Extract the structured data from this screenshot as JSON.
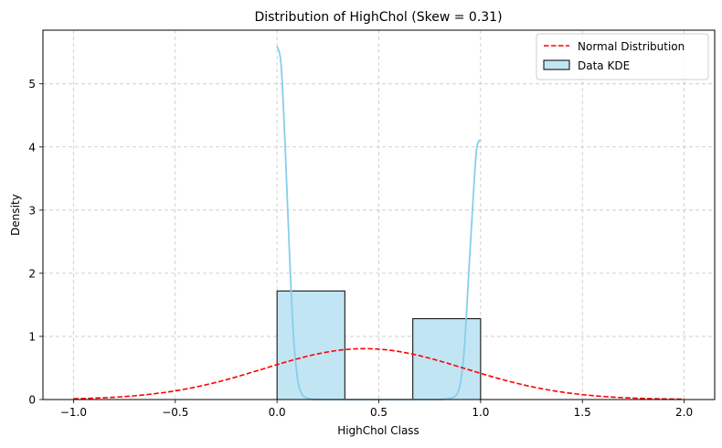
{
  "chart_data": {
    "type": "bar",
    "title": "Distribution of HighChol (Skew = 0.31)",
    "xlabel": "HighChol Class",
    "ylabel": "Density",
    "xlim": [
      -1.15,
      2.15
    ],
    "ylim": [
      0,
      5.85
    ],
    "xticks": [
      -1.0,
      -0.5,
      0.0,
      0.5,
      1.0,
      1.5,
      2.0
    ],
    "xtick_labels": [
      "−1.0",
      "−0.5",
      "0.0",
      "0.5",
      "1.0",
      "1.5",
      "2.0"
    ],
    "yticks": [
      0,
      1,
      2,
      3,
      4,
      5
    ],
    "ytick_labels": [
      "0",
      "1",
      "2",
      "3",
      "4",
      "5"
    ],
    "grid": true,
    "legend_position": "top-right",
    "histogram": {
      "name": "Data KDE",
      "bins": [
        {
          "x0": 0.0,
          "x1": 0.333,
          "density": 1.72
        },
        {
          "x0": 0.333,
          "x1": 0.667,
          "density": 0.0
        },
        {
          "x0": 0.667,
          "x1": 1.0,
          "density": 1.28
        }
      ],
      "fill": "#c2e5f3",
      "edge": "#000000"
    },
    "kde": {
      "x": [
        0.0,
        0.02,
        0.04,
        0.06,
        0.08,
        0.1,
        0.12,
        0.15,
        0.2,
        0.3,
        0.5,
        0.7,
        0.8,
        0.85,
        0.88,
        0.9,
        0.92,
        0.94,
        0.96,
        0.98,
        1.0
      ],
      "y": [
        5.6,
        5.3,
        4.0,
        2.4,
        1.05,
        0.35,
        0.1,
        0.02,
        0.0,
        0.0,
        0.0,
        0.0,
        0.0,
        0.02,
        0.07,
        0.25,
        0.8,
        1.9,
        3.0,
        3.95,
        4.12
      ],
      "color": "#87ceeb"
    },
    "normal": {
      "name": "Normal Distribution",
      "mean": 0.43,
      "std": 0.495,
      "x_range": [
        -1.0,
        2.0
      ],
      "color": "#ff0000"
    },
    "legend": [
      {
        "label": "Normal Distribution",
        "kind": "dashed-line",
        "color": "#ff0000"
      },
      {
        "label": "Data KDE",
        "kind": "patch",
        "color": "#c2e5f3"
      }
    ]
  }
}
